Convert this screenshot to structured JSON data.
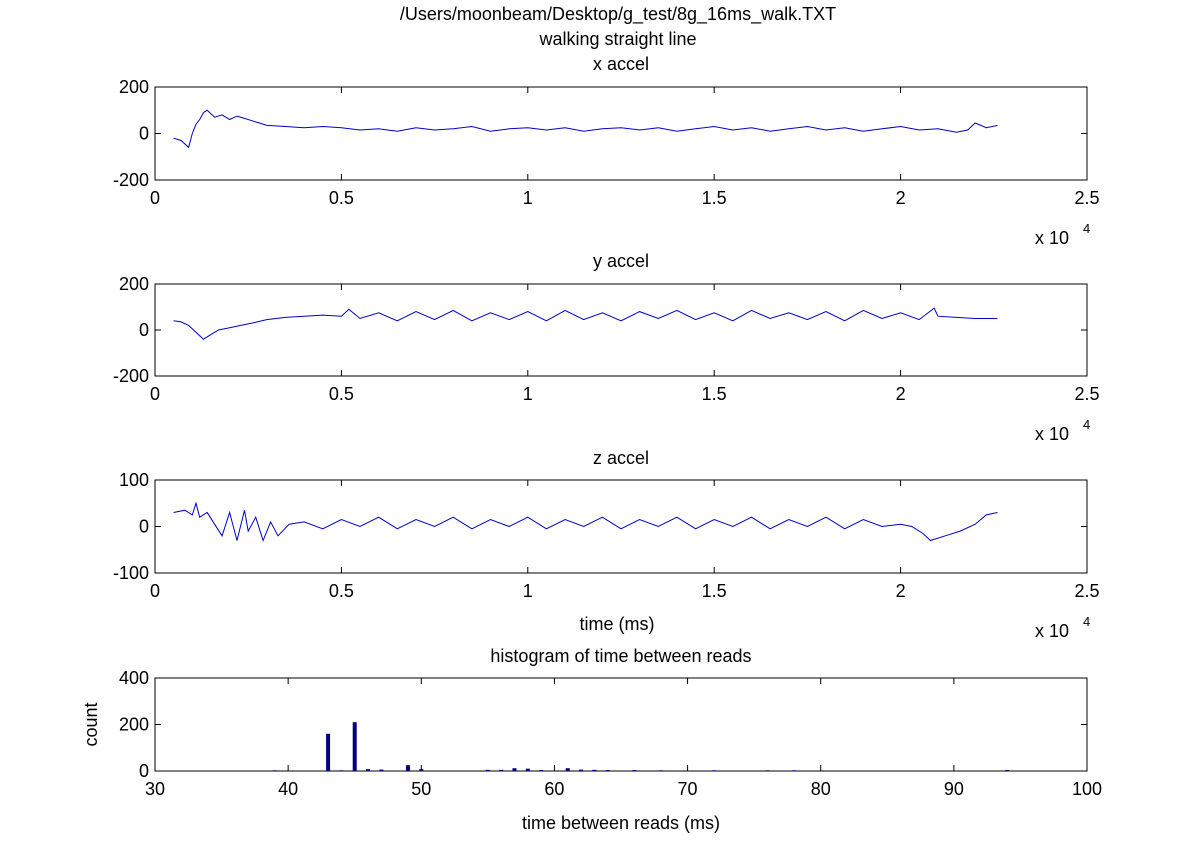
{
  "figure": {
    "title_line1": "/Users/moonbeam/Desktop/g_test/8g_16ms_walk.TXT",
    "title_line2": "walking straight line"
  },
  "chart_data": [
    {
      "type": "line",
      "title": "x accel",
      "xlabel": "",
      "ylabel": "",
      "xlim": [
        0,
        25000
      ],
      "ylim": [
        -200,
        200
      ],
      "xticks": [
        0,
        5000,
        10000,
        15000,
        20000,
        25000
      ],
      "xtick_labels": [
        "0",
        "0.5",
        "1",
        "1.5",
        "2",
        "2.5"
      ],
      "yticks": [
        -200,
        0,
        200
      ],
      "ytick_labels": [
        "-200",
        "0",
        "200"
      ],
      "x_multiplier_label": "x 10",
      "x_multiplier_exp": "4",
      "line_color": "#0000cc",
      "series": [
        {
          "x": [
            500,
            700,
            900,
            1000,
            1100,
            1200,
            1300,
            1400,
            1500,
            1600,
            1800,
            2000,
            2200,
            2400,
            2600,
            2800,
            3000,
            3500,
            4000,
            4500,
            5000,
            5500,
            6000,
            6500,
            7000,
            7500,
            8000,
            8500,
            9000,
            9500,
            10000,
            10500,
            11000,
            11500,
            12000,
            12500,
            13000,
            13500,
            14000,
            14500,
            15000,
            15500,
            16000,
            16500,
            17000,
            17500,
            18000,
            18500,
            19000,
            19500,
            20000,
            20500,
            21000,
            21500,
            21800,
            22000,
            22300,
            22600
          ],
          "y": [
            -20,
            -30,
            -60,
            0,
            40,
            60,
            90,
            100,
            85,
            70,
            80,
            60,
            75,
            65,
            55,
            45,
            35,
            30,
            25,
            30,
            25,
            15,
            20,
            10,
            25,
            15,
            20,
            30,
            10,
            20,
            25,
            15,
            25,
            10,
            20,
            25,
            15,
            25,
            10,
            20,
            30,
            15,
            25,
            10,
            20,
            30,
            15,
            25,
            10,
            20,
            30,
            15,
            20,
            5,
            15,
            45,
            25,
            35
          ]
        }
      ]
    },
    {
      "type": "line",
      "title": "y accel",
      "xlabel": "",
      "ylabel": "",
      "xlim": [
        0,
        25000
      ],
      "ylim": [
        -200,
        200
      ],
      "xticks": [
        0,
        5000,
        10000,
        15000,
        20000,
        25000
      ],
      "xtick_labels": [
        "0",
        "0.5",
        "1",
        "1.5",
        "2",
        "2.5"
      ],
      "yticks": [
        -200,
        0,
        200
      ],
      "ytick_labels": [
        "-200",
        "0",
        "200"
      ],
      "x_multiplier_label": "x 10",
      "x_multiplier_exp": "4",
      "line_color": "#0000cc",
      "series": [
        {
          "x": [
            500,
            700,
            900,
            1100,
            1300,
            1500,
            1700,
            2000,
            2300,
            2600,
            3000,
            3500,
            4000,
            4500,
            5000,
            5200,
            5500,
            6000,
            6500,
            7000,
            7500,
            8000,
            8500,
            9000,
            9500,
            10000,
            10500,
            11000,
            11500,
            12000,
            12500,
            13000,
            13500,
            14000,
            14500,
            15000,
            15500,
            16000,
            16500,
            17000,
            17500,
            18000,
            18500,
            19000,
            19500,
            20000,
            20500,
            20900,
            21000,
            21500,
            22000,
            22600
          ],
          "y": [
            40,
            35,
            20,
            -10,
            -40,
            -20,
            0,
            10,
            20,
            30,
            45,
            55,
            60,
            65,
            60,
            90,
            50,
            75,
            40,
            80,
            45,
            85,
            40,
            75,
            45,
            80,
            40,
            85,
            45,
            75,
            40,
            80,
            50,
            85,
            45,
            75,
            40,
            85,
            50,
            75,
            45,
            80,
            40,
            85,
            50,
            75,
            45,
            95,
            60,
            55,
            50,
            50
          ]
        }
      ]
    },
    {
      "type": "line",
      "title": "z accel",
      "xlabel": "time (ms)",
      "ylabel": "",
      "xlim": [
        0,
        25000
      ],
      "ylim": [
        -100,
        100
      ],
      "xticks": [
        0,
        5000,
        10000,
        15000,
        20000,
        25000
      ],
      "xtick_labels": [
        "0",
        "0.5",
        "1",
        "1.5",
        "2",
        "2.5"
      ],
      "yticks": [
        -100,
        0,
        100
      ],
      "ytick_labels": [
        "-100",
        "0",
        "100"
      ],
      "x_multiplier_label": "x 10",
      "x_multiplier_exp": "4",
      "line_color": "#0000cc",
      "series": [
        {
          "x": [
            500,
            800,
            1000,
            1100,
            1200,
            1400,
            1600,
            1800,
            2000,
            2200,
            2400,
            2500,
            2700,
            2900,
            3100,
            3300,
            3600,
            4000,
            4500,
            5000,
            5500,
            6000,
            6500,
            7000,
            7500,
            8000,
            8500,
            9000,
            9500,
            10000,
            10500,
            11000,
            11500,
            12000,
            12500,
            13000,
            13500,
            14000,
            14500,
            15000,
            15500,
            16000,
            16500,
            17000,
            17500,
            18000,
            18500,
            19000,
            19500,
            20000,
            20300,
            20600,
            20800,
            21200,
            21600,
            22000,
            22300,
            22600
          ],
          "y": [
            30,
            35,
            25,
            50,
            20,
            30,
            5,
            -20,
            30,
            -30,
            35,
            -10,
            20,
            -30,
            10,
            -20,
            5,
            10,
            -5,
            15,
            0,
            20,
            -5,
            15,
            0,
            20,
            -5,
            15,
            0,
            20,
            -5,
            15,
            0,
            20,
            -5,
            15,
            0,
            20,
            -5,
            15,
            0,
            20,
            -5,
            15,
            0,
            20,
            -5,
            15,
            0,
            5,
            0,
            -15,
            -30,
            -20,
            -10,
            5,
            25,
            30
          ]
        }
      ]
    },
    {
      "type": "bar",
      "title": "histogram of time between reads",
      "xlabel": "time between reads (ms)",
      "ylabel": "count",
      "xlim": [
        30,
        100
      ],
      "ylim": [
        0,
        400
      ],
      "xticks": [
        30,
        40,
        50,
        60,
        70,
        80,
        90,
        100
      ],
      "xtick_labels": [
        "30",
        "40",
        "50",
        "60",
        "70",
        "80",
        "90",
        "100"
      ],
      "yticks": [
        0,
        200,
        400
      ],
      "ytick_labels": [
        "0",
        "200",
        "400"
      ],
      "bar_color": "#000080",
      "x": [
        39,
        43,
        44,
        45,
        46,
        47,
        49,
        50,
        55,
        56,
        57,
        58,
        59,
        61,
        62,
        63,
        64,
        66,
        68,
        72,
        76,
        78,
        94
      ],
      "values": [
        3,
        160,
        3,
        210,
        8,
        6,
        25,
        8,
        5,
        5,
        12,
        10,
        4,
        12,
        6,
        5,
        4,
        4,
        3,
        3,
        3,
        3,
        4
      ]
    }
  ]
}
